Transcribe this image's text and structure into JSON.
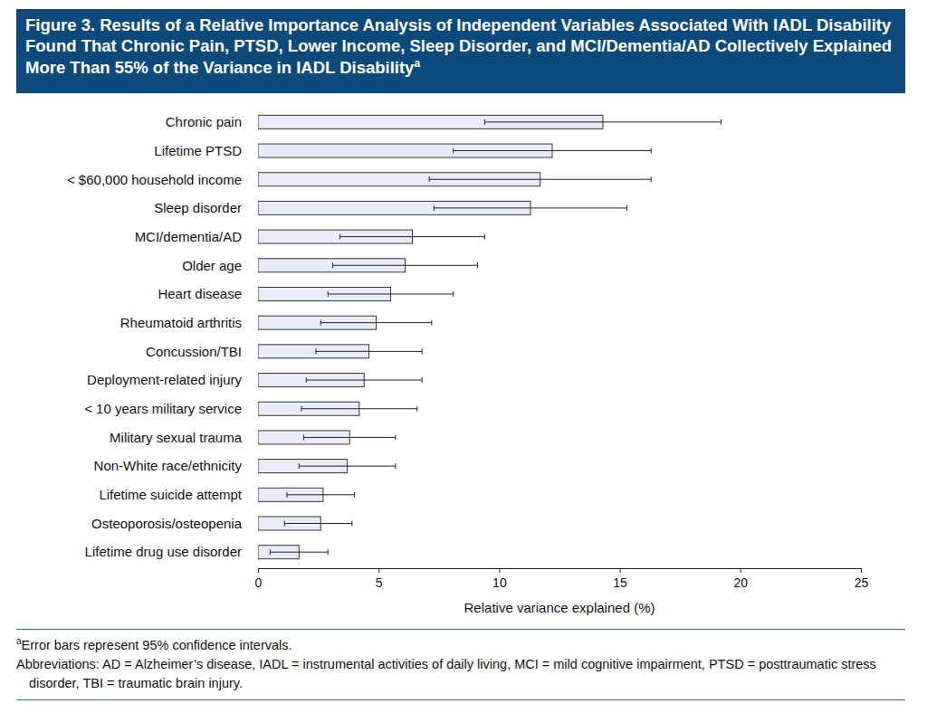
{
  "chart_data": {
    "type": "bar",
    "orientation": "horizontal",
    "title": "Figure 3. Results of a Relative Importance Analysis of Independent Variables Associated With IADL Disability Found That Chronic Pain, PTSD, Lower Income, Sleep Disorder, and MCI/Dementia/AD Collectively Explained More Than 55% of the Variance in IADL Disability",
    "title_superscript": "a",
    "x_label": "Relative variance explained (%)",
    "categories": [
      "Chronic pain",
      "Lifetime PTSD",
      "< $60,000 household income",
      "Sleep disorder",
      "MCI/dementia/AD",
      "Older age",
      "Heart disease",
      "Rheumatoid arthritis",
      "Concussion/TBI",
      "Deployment-related injury",
      "< 10 years military service",
      "Military sexual trauma",
      "Non-White race/ethnicity",
      "Lifetime suicide attempt",
      "Osteoporosis/osteopenia",
      "Lifetime drug use disorder"
    ],
    "values": [
      14.3,
      12.2,
      11.7,
      11.3,
      6.4,
      6.1,
      5.5,
      4.9,
      4.6,
      4.4,
      4.2,
      3.8,
      3.7,
      2.7,
      2.6,
      1.7
    ],
    "ci_lower": [
      9.4,
      8.1,
      7.1,
      7.3,
      3.4,
      3.1,
      2.9,
      2.6,
      2.4,
      2.0,
      1.8,
      1.9,
      1.7,
      1.2,
      1.1,
      0.5
    ],
    "ci_upper": [
      19.2,
      16.3,
      16.3,
      15.3,
      9.4,
      9.1,
      8.1,
      7.2,
      6.8,
      6.8,
      6.6,
      5.7,
      5.7,
      4.0,
      3.9,
      2.9
    ],
    "color": "#e8ecf8",
    "xlim": [
      0,
      25
    ],
    "xticks": [
      0,
      5,
      10,
      15,
      20,
      25
    ],
    "grid": false,
    "footnotes": [
      {
        "marker": "a",
        "text": "Error bars represent 95% confidence intervals."
      },
      {
        "text": "Abbreviations: AD = Alzheimer’s disease, IADL = instrumental activities of daily living, MCI = mild cognitive impairment, PTSD = posttraumatic stress disorder, TBI = traumatic brain injury."
      }
    ]
  }
}
